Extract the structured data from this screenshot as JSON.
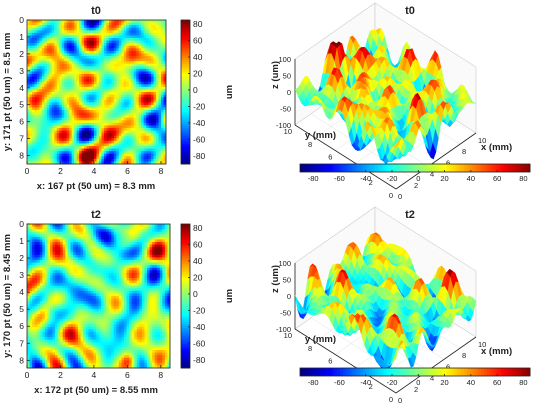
{
  "chart_data": [
    {
      "type": "heatmap",
      "title": "t0",
      "xlabel": "x: 167 pt (50 um) = 8.3 mm",
      "ylabel": "y: 171 pt (50 um) = 8.5 mm",
      "xlim": [
        0,
        8.3
      ],
      "ylim": [
        0,
        8.5
      ],
      "y_reversed": true,
      "x_ticks": [
        0,
        2,
        4,
        6,
        8
      ],
      "y_ticks": [
        0,
        1,
        2,
        3,
        4,
        5,
        6,
        7,
        8
      ],
      "colorbar": {
        "label": "um",
        "range": [
          -90,
          85
        ],
        "ticks": [
          80,
          60,
          40,
          20,
          0,
          -20,
          -40,
          -60,
          -80
        ],
        "colormap": "jet"
      },
      "seed": 11
    },
    {
      "type": "surface3d",
      "title": "t0",
      "xlabel": "x (mm)",
      "ylabel": "y (mm)",
      "zlabel": "z (um)",
      "x_ticks": [
        0,
        2,
        4,
        6,
        8,
        10
      ],
      "y_ticks": [
        0,
        2,
        4,
        6,
        8,
        10
      ],
      "z_ticks": [
        100,
        50,
        0,
        -50,
        -100
      ],
      "colorbar": {
        "orientation": "horizontal",
        "range": [
          -90,
          85
        ],
        "ticks": [
          -80,
          -60,
          -40,
          -20,
          0,
          20,
          40,
          60,
          80
        ],
        "colormap": "jet"
      },
      "seed": 11
    },
    {
      "type": "heatmap",
      "title": "t2",
      "xlabel": "x: 172 pt (50 um) = 8.55 mm",
      "ylabel": "y: 170 pt (50 um) = 8.45 mm",
      "xlim": [
        0,
        8.55
      ],
      "ylim": [
        0,
        8.45
      ],
      "y_reversed": true,
      "x_ticks": [
        0,
        2,
        4,
        6,
        8
      ],
      "y_ticks": [
        0,
        1,
        2,
        3,
        4,
        5,
        6,
        7,
        8
      ],
      "colorbar": {
        "label": "um",
        "range": [
          -90,
          85
        ],
        "ticks": [
          80,
          60,
          40,
          20,
          0,
          -20,
          -40,
          -60,
          -80
        ],
        "colormap": "jet"
      },
      "seed": 29
    },
    {
      "type": "surface3d",
      "title": "t2",
      "xlabel": "x (mm)",
      "ylabel": "y (mm)",
      "zlabel": "z (um)",
      "x_ticks": [
        0,
        2,
        4,
        6,
        8,
        10
      ],
      "y_ticks": [
        0,
        2,
        4,
        6,
        8,
        10
      ],
      "z_ticks": [
        100,
        50,
        0,
        -50,
        -100
      ],
      "colorbar": {
        "orientation": "horizontal",
        "range": [
          -90,
          85
        ],
        "ticks": [
          -80,
          -60,
          -40,
          -20,
          0,
          20,
          40,
          60,
          80
        ],
        "colormap": "jet"
      },
      "seed": 29
    }
  ]
}
